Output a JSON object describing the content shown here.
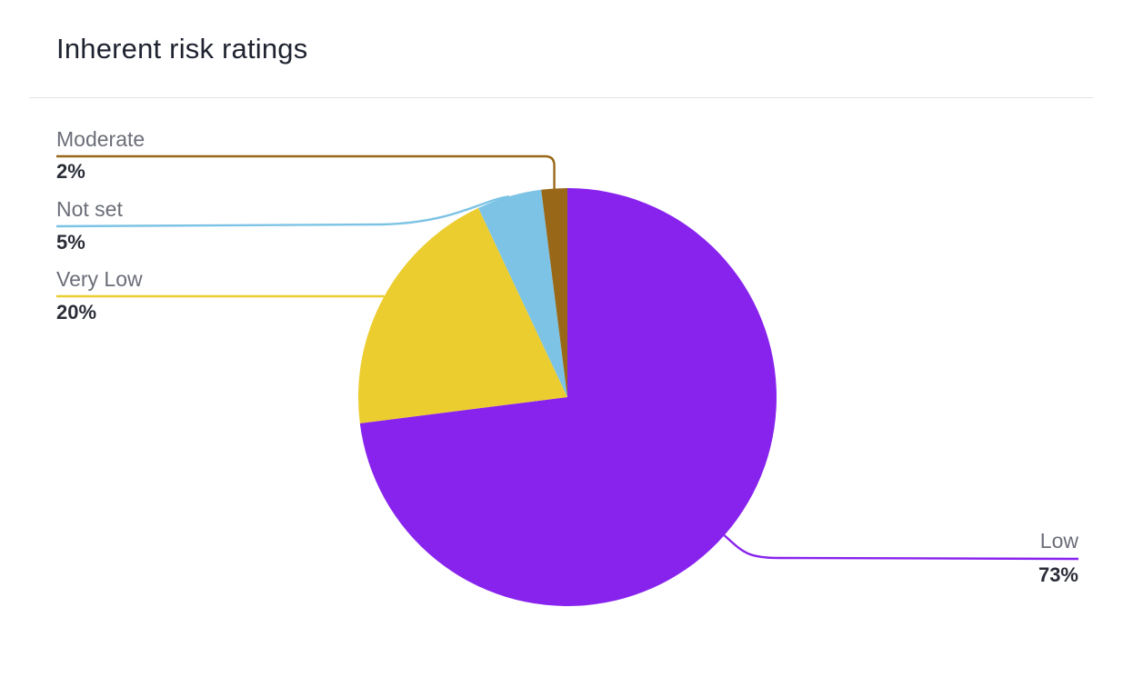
{
  "card": {
    "title": "Inherent risk ratings"
  },
  "chart_data": {
    "type": "pie",
    "title": "Inherent risk ratings",
    "slices": [
      {
        "name": "Low",
        "value": 73,
        "label": "73%",
        "color": "#8823ee"
      },
      {
        "name": "Very Low",
        "value": 20,
        "label": "20%",
        "color": "#eccd30"
      },
      {
        "name": "Not set",
        "value": 5,
        "label": "5%",
        "color": "#7cc3e5"
      },
      {
        "name": "Moderate",
        "value": 2,
        "label": "2%",
        "color": "#986818"
      }
    ],
    "legend": "none",
    "data_labels": "outside-with-leader-lines"
  }
}
